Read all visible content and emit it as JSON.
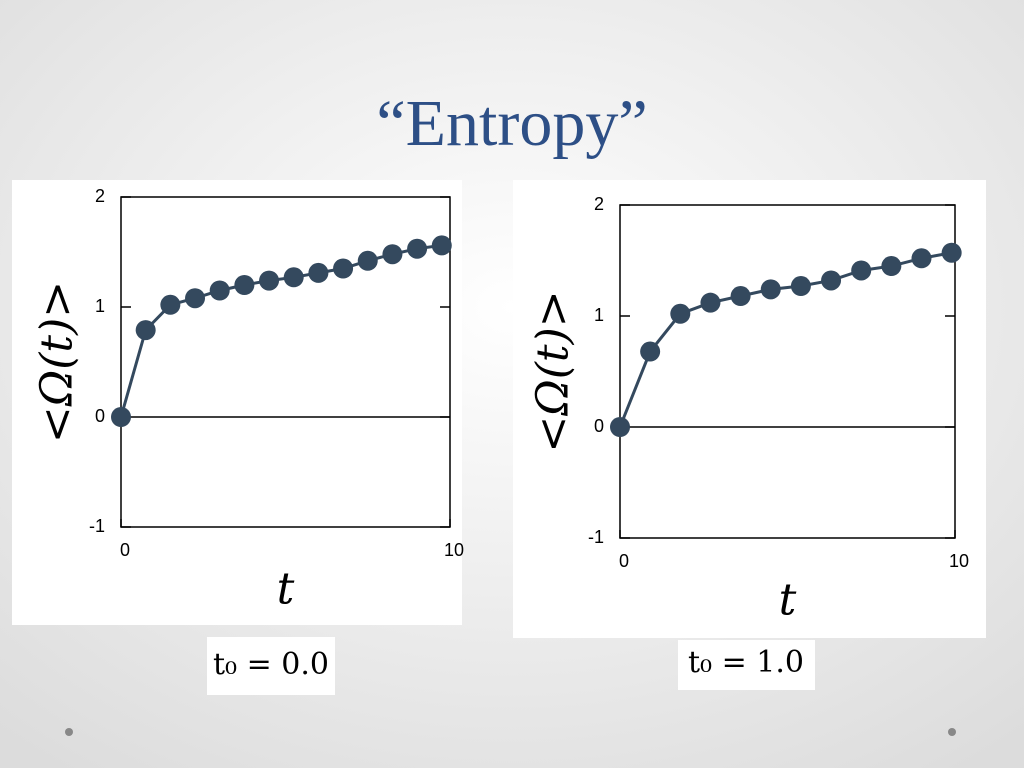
{
  "title": "“Entropy”",
  "chart_data": [
    {
      "type": "line",
      "ylabel": "<Ω(t)>",
      "xlabel": "t",
      "caption": "t₀ = 0.0",
      "x": [
        0,
        0.75,
        1.5,
        2.25,
        3,
        3.75,
        4.5,
        5.25,
        6,
        6.75,
        7.5,
        8.25,
        9,
        9.75
      ],
      "series": [
        {
          "color": "#34495e",
          "values": [
            0,
            0.79,
            1.02,
            1.08,
            1.15,
            1.2,
            1.24,
            1.27,
            1.31,
            1.35,
            1.42,
            1.48,
            1.53,
            1.56
          ]
        }
      ],
      "xlim": [
        0,
        10
      ],
      "xticks": [
        0,
        10
      ],
      "ylim": [
        -1,
        2
      ],
      "yticks": [
        -1,
        0,
        1,
        2
      ]
    },
    {
      "type": "line",
      "ylabel": "<Ω(t)>",
      "xlabel": "t",
      "caption": "t₀ = 1.0",
      "x": [
        0,
        0.9,
        1.8,
        2.7,
        3.6,
        4.5,
        5.4,
        6.3,
        7.2,
        8.1,
        9,
        9.9
      ],
      "series": [
        {
          "color": "#34495e",
          "values": [
            0,
            0.68,
            1.02,
            1.12,
            1.18,
            1.24,
            1.27,
            1.32,
            1.41,
            1.45,
            1.52,
            1.57
          ]
        }
      ],
      "xlim": [
        0,
        10
      ],
      "xticks": [
        0,
        10
      ],
      "ylim": [
        -1,
        2
      ],
      "yticks": [
        -1,
        0,
        1,
        2
      ]
    }
  ]
}
